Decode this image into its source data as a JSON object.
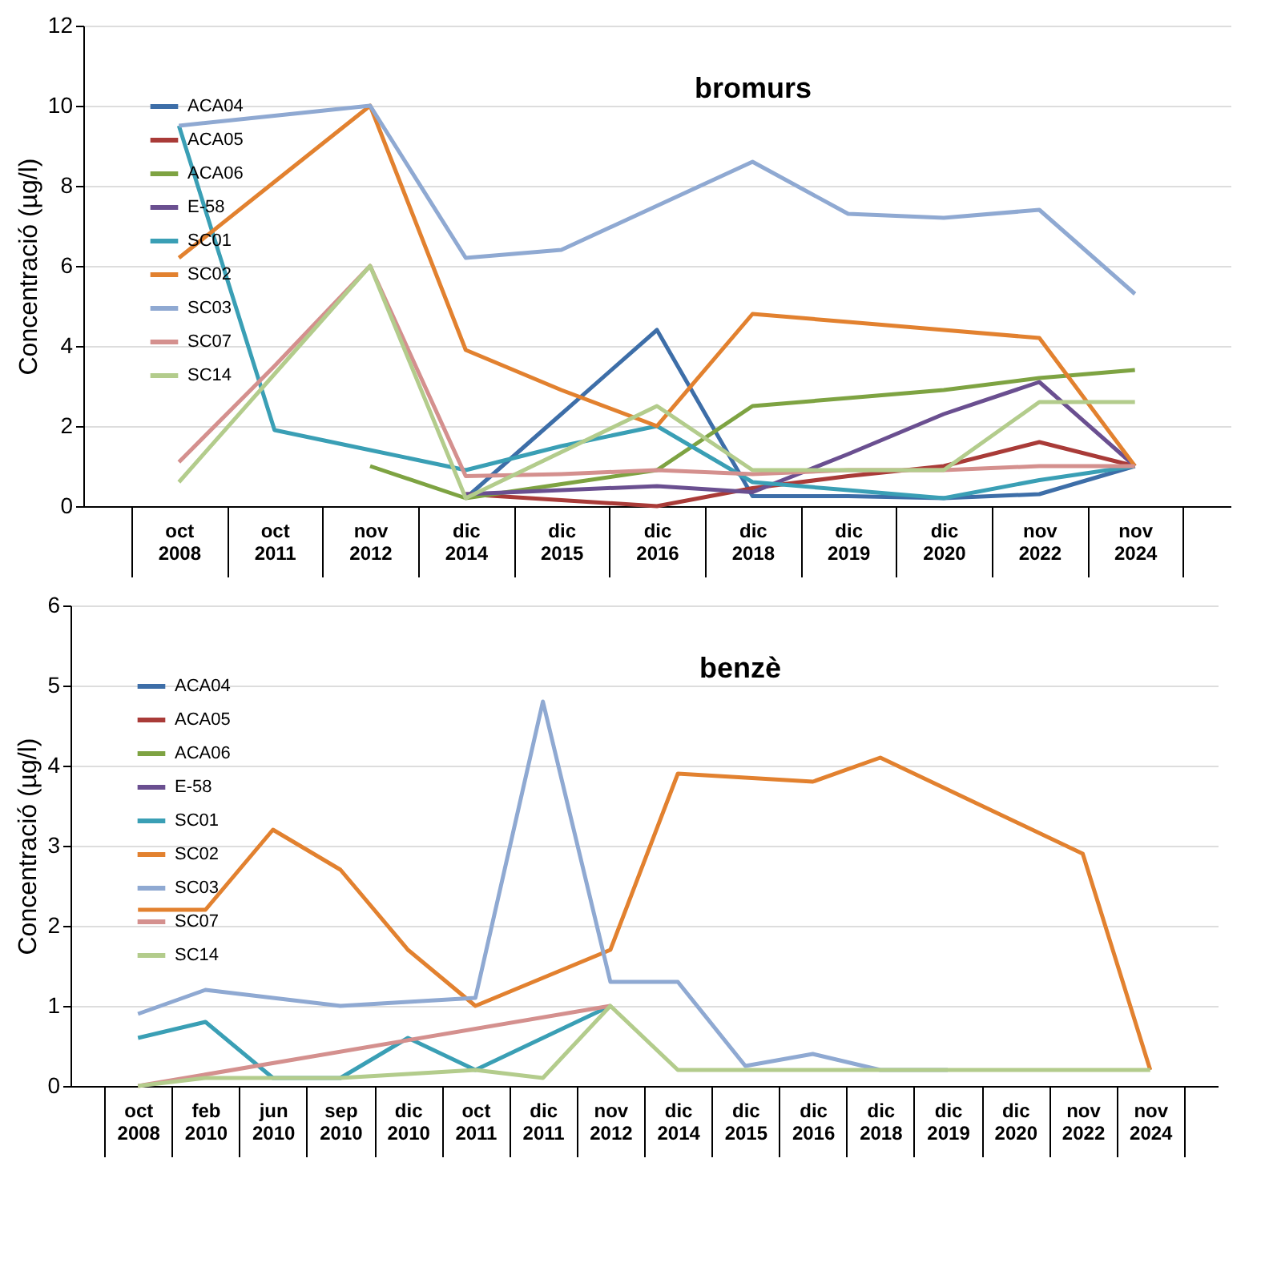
{
  "chart_data": [
    {
      "type": "line",
      "title": "bromurs",
      "ylabel": "Concentració (µg/l)",
      "categories": [
        "oct 2008",
        "oct 2011",
        "nov 2012",
        "dic 2014",
        "dic 2015",
        "dic 2016",
        "dic 2018",
        "dic 2019",
        "dic 2020",
        "nov 2022",
        "nov 2024"
      ],
      "series": [
        {
          "name": "ACA04",
          "color": "#3d6ea8",
          "values": [
            null,
            null,
            null,
            0.2,
            2.3,
            4.4,
            0.25,
            0.25,
            0.2,
            0.3,
            1.0
          ]
        },
        {
          "name": "ACA05",
          "color": "#a93b38",
          "values": [
            null,
            null,
            null,
            0.3,
            0.15,
            0.0,
            0.45,
            0.75,
            1.0,
            1.6,
            1.0
          ]
        },
        {
          "name": "ACA06",
          "color": "#7ea342",
          "values": [
            null,
            null,
            1.0,
            0.2,
            0.55,
            0.9,
            2.5,
            2.7,
            2.9,
            3.2,
            3.4
          ]
        },
        {
          "name": "E-58",
          "color": "#6a4f90",
          "values": [
            null,
            null,
            null,
            0.3,
            0.4,
            0.5,
            0.35,
            1.3,
            2.3,
            3.1,
            1.0
          ]
        },
        {
          "name": "SC01",
          "color": "#3a9fb5",
          "values": [
            9.5,
            1.9,
            1.4,
            0.9,
            1.5,
            2.0,
            0.6,
            0.4,
            0.2,
            0.65,
            1.0
          ]
        },
        {
          "name": "SC02",
          "color": "#e2812f",
          "values": [
            6.2,
            8.1,
            10.0,
            3.9,
            2.9,
            2.0,
            4.8,
            4.6,
            4.4,
            4.2,
            1.0
          ]
        },
        {
          "name": "SC03",
          "color": "#8fa9d2",
          "values": [
            9.5,
            9.75,
            10.0,
            6.2,
            6.4,
            7.5,
            8.6,
            7.3,
            7.2,
            7.4,
            5.3
          ]
        },
        {
          "name": "SC07",
          "color": "#d4908e",
          "values": [
            1.1,
            3.5,
            6.0,
            0.75,
            0.8,
            0.9,
            0.8,
            0.9,
            0.9,
            1.0,
            1.0
          ]
        },
        {
          "name": "SC14",
          "color": "#b3cc8c",
          "values": [
            0.6,
            3.3,
            6.0,
            0.2,
            1.35,
            2.5,
            0.9,
            0.9,
            0.9,
            2.6,
            2.6
          ]
        }
      ],
      "ylim": [
        0,
        12
      ],
      "yticks": [
        0,
        2,
        4,
        6,
        8,
        10,
        12
      ],
      "grid": "y",
      "legend": "top left"
    },
    {
      "type": "line",
      "title": "benzè",
      "ylabel": "Concentració (µg/l)",
      "categories": [
        "oct 2008",
        "feb 2010",
        "jun 2010",
        "sep 2010",
        "dic 2010",
        "oct 2011",
        "dic 2011",
        "nov 2012",
        "dic 2014",
        "dic 2015",
        "dic 2016",
        "dic 2018",
        "dic 2019",
        "dic 2020",
        "nov 2022",
        "nov 2024"
      ],
      "series": [
        {
          "name": "ACA04",
          "color": "#3d6ea8",
          "values": [
            null,
            null,
            null,
            null,
            null,
            null,
            null,
            null,
            null,
            null,
            null,
            null,
            null,
            null,
            null,
            null
          ]
        },
        {
          "name": "ACA05",
          "color": "#a93b38",
          "values": [
            null,
            null,
            null,
            null,
            null,
            null,
            null,
            null,
            null,
            null,
            null,
            null,
            null,
            null,
            null,
            null
          ]
        },
        {
          "name": "ACA06",
          "color": "#7ea342",
          "values": [
            null,
            null,
            null,
            null,
            null,
            null,
            null,
            null,
            null,
            null,
            null,
            null,
            null,
            null,
            null,
            null
          ]
        },
        {
          "name": "E-58",
          "color": "#6a4f90",
          "values": [
            null,
            null,
            null,
            null,
            null,
            null,
            null,
            null,
            null,
            null,
            null,
            null,
            null,
            null,
            null,
            null
          ]
        },
        {
          "name": "SC01",
          "color": "#3a9fb5",
          "values": [
            0.6,
            0.8,
            0.1,
            0.1,
            0.6,
            0.2,
            0.6,
            1.0,
            null,
            null,
            null,
            null,
            null,
            null,
            null,
            null
          ]
        },
        {
          "name": "SC02",
          "color": "#e2812f",
          "values": [
            2.2,
            2.2,
            3.2,
            2.7,
            1.7,
            1.0,
            1.35,
            1.7,
            3.9,
            3.85,
            3.8,
            4.1,
            3.7,
            3.3,
            2.9,
            0.2
          ]
        },
        {
          "name": "SC03",
          "color": "#8fa9d2",
          "values": [
            0.9,
            1.2,
            1.1,
            1.0,
            1.05,
            1.1,
            4.8,
            1.3,
            1.3,
            0.25,
            0.4,
            0.2,
            0.2,
            null,
            null,
            null
          ]
        },
        {
          "name": "SC07",
          "color": "#d4908e",
          "values": [
            0.0,
            null,
            null,
            null,
            null,
            null,
            null,
            1.0,
            null,
            null,
            null,
            null,
            null,
            null,
            null,
            null
          ]
        },
        {
          "name": "SC14",
          "color": "#b3cc8c",
          "values": [
            0.0,
            0.1,
            0.1,
            0.1,
            0.15,
            0.2,
            0.1,
            1.0,
            0.2,
            0.2,
            0.2,
            0.2,
            0.2,
            0.2,
            0.2,
            0.2
          ]
        }
      ],
      "ylim": [
        0,
        6
      ],
      "yticks": [
        0,
        1,
        2,
        3,
        4,
        5,
        6
      ],
      "grid": "y",
      "legend": "top left"
    }
  ]
}
